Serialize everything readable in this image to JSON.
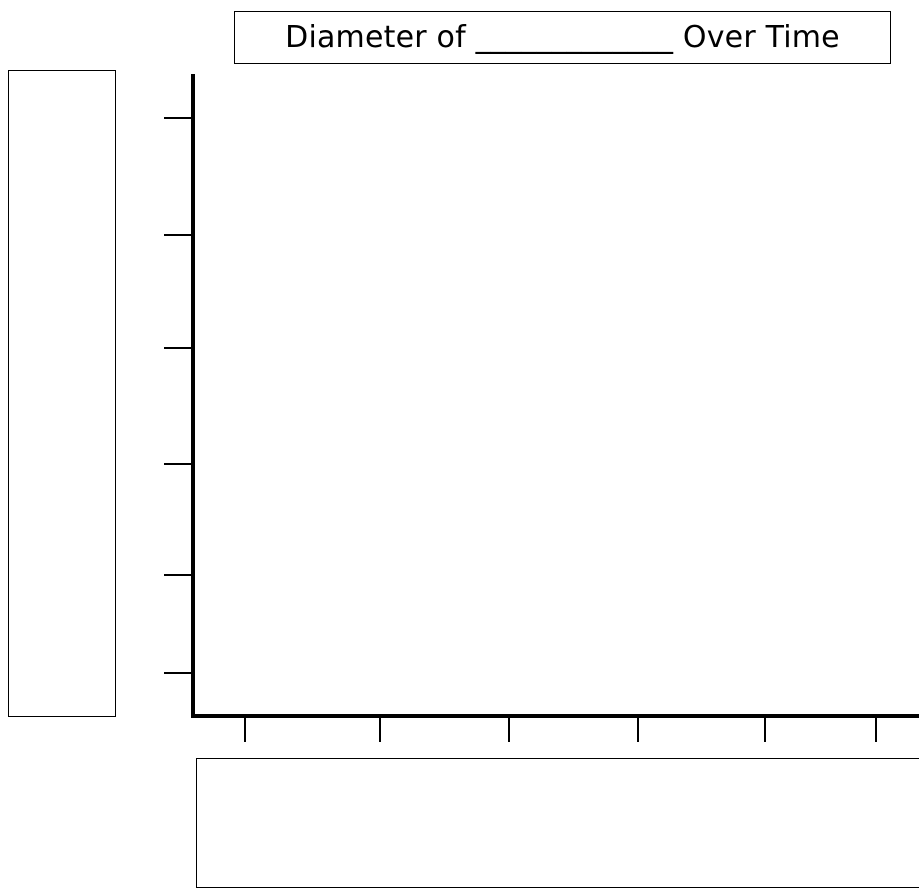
{
  "chart_data": {
    "type": "line",
    "title": "Diameter of _____________ Over Time",
    "xlabel": "",
    "ylabel": "",
    "x_tick_count": 6,
    "y_tick_count": 6,
    "x_tick_labels": [],
    "y_tick_labels": [],
    "series": [],
    "grid": false
  }
}
